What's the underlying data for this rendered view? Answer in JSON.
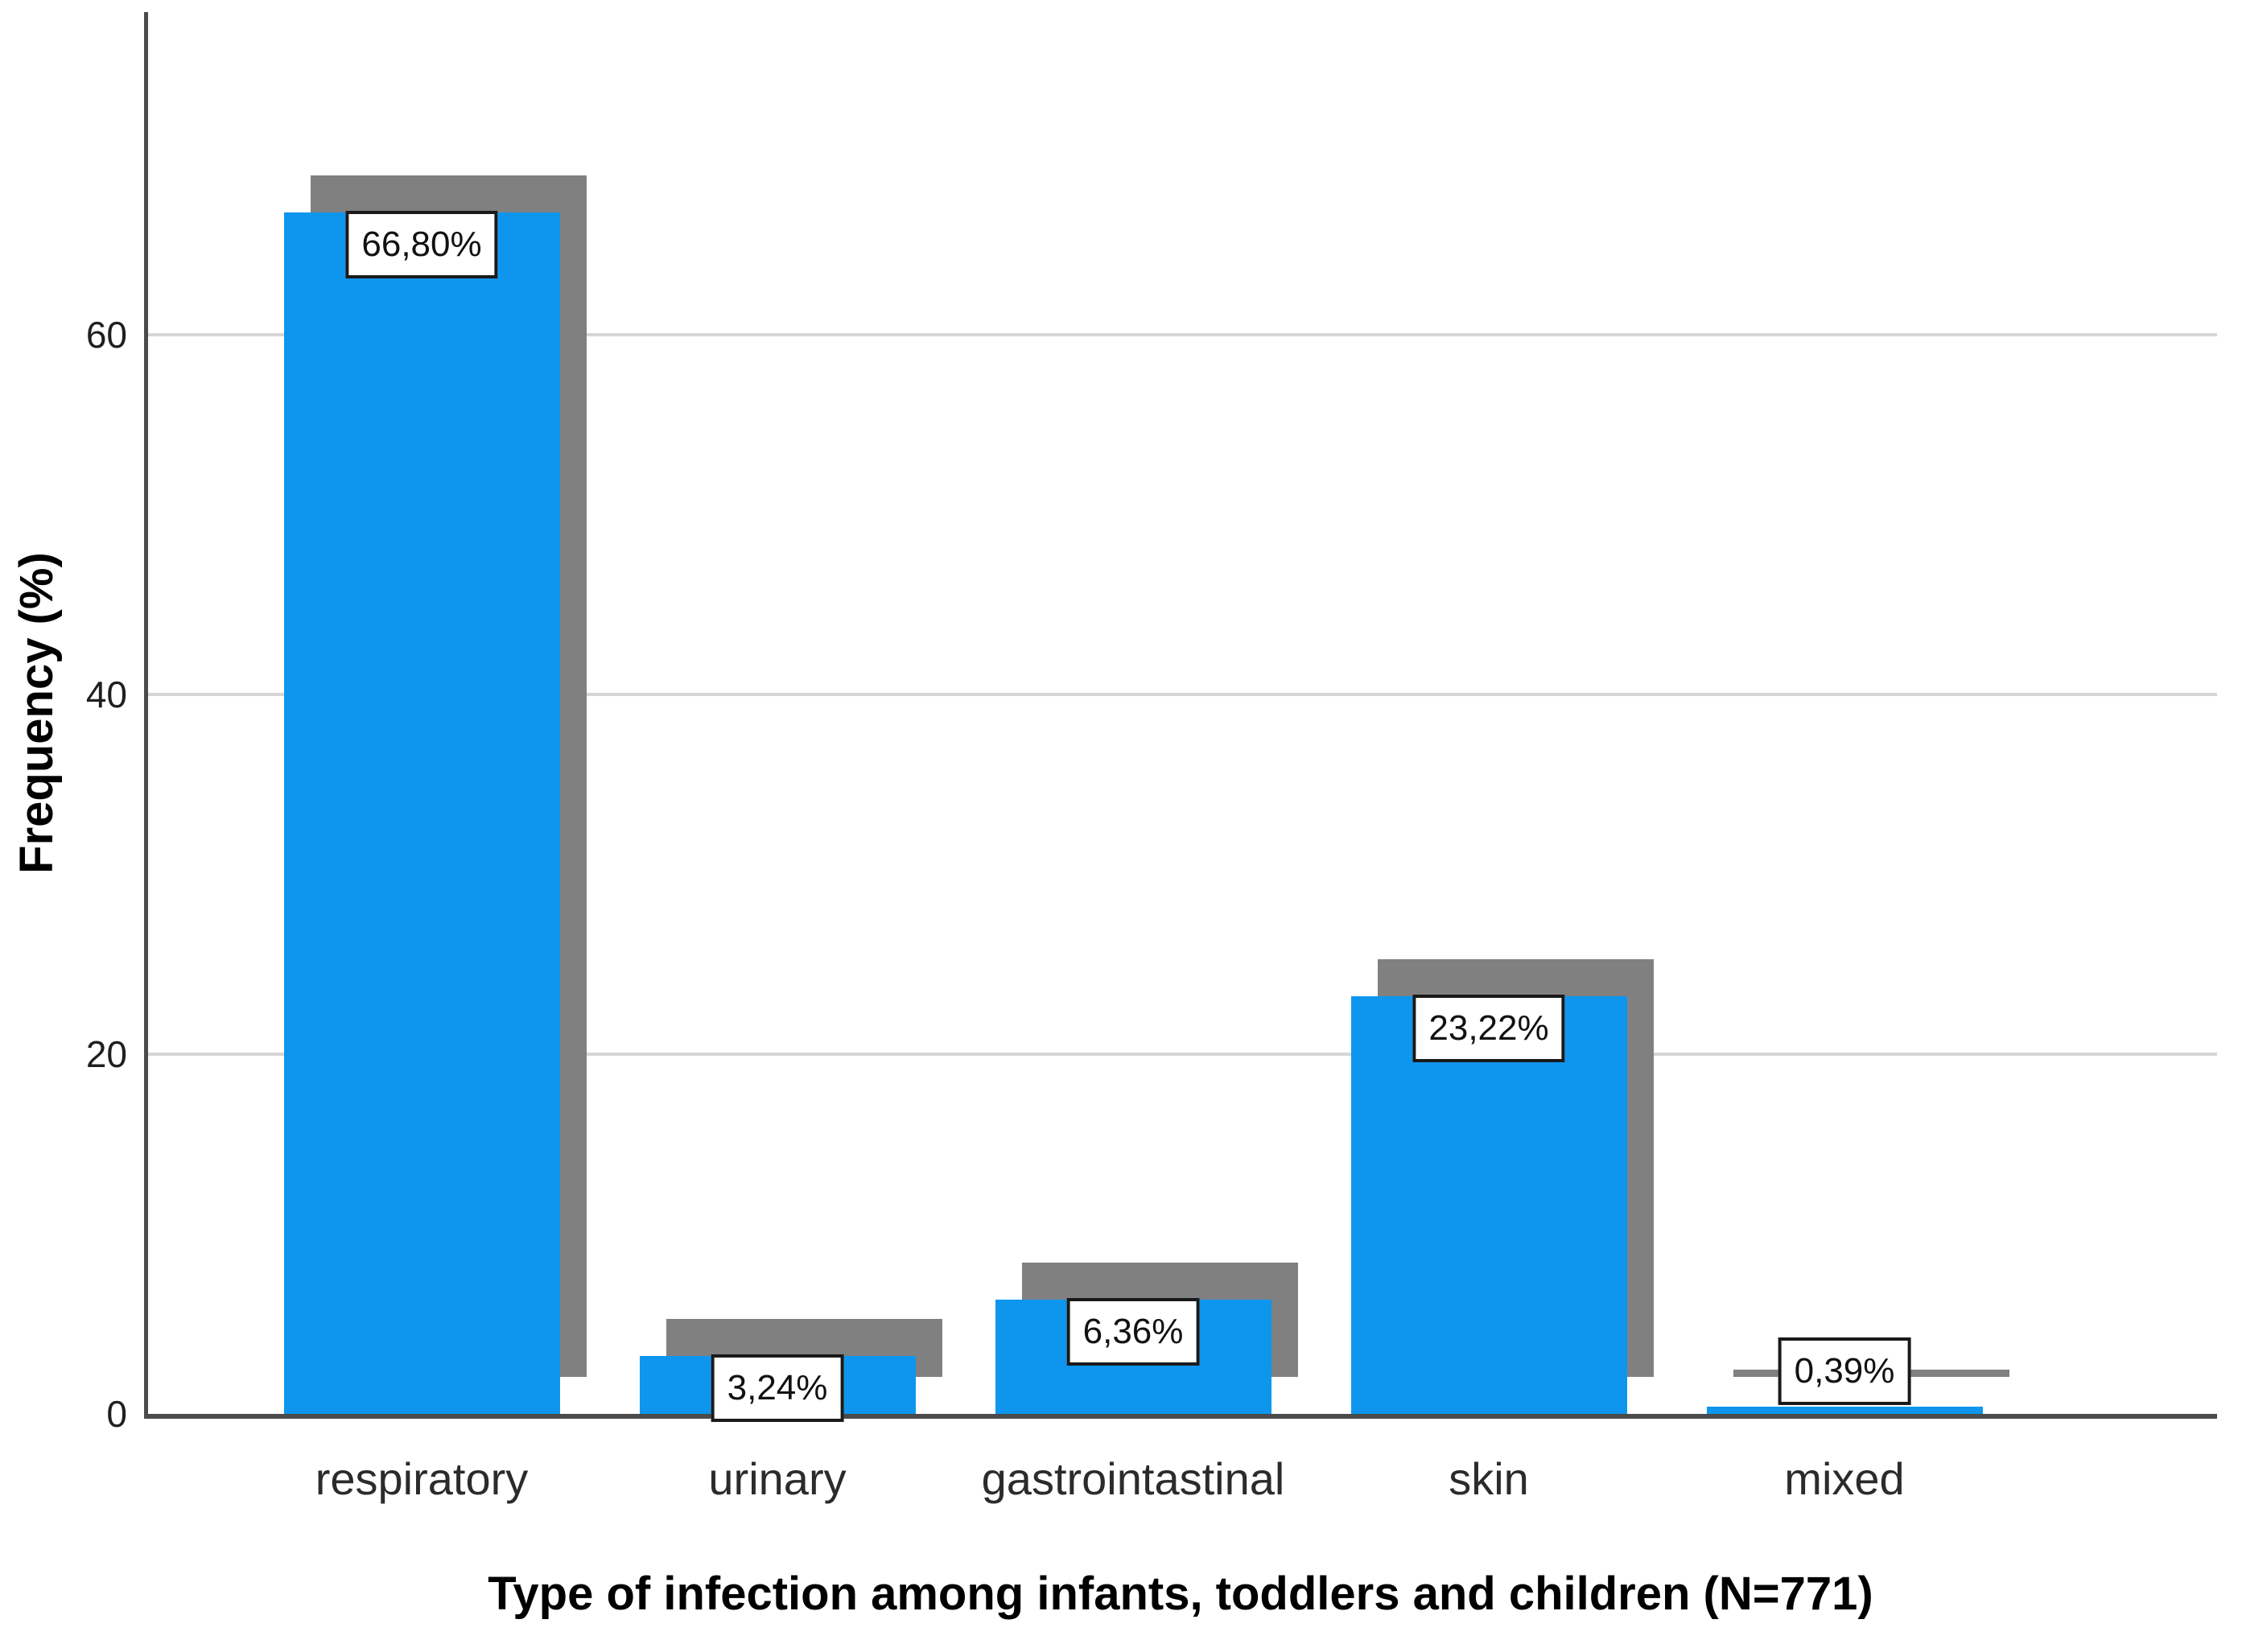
{
  "chart_data": {
    "type": "bar",
    "title": "",
    "xlabel": "Type of infection among infants, toddlers and children (N=771)",
    "ylabel": "Frequency (%)",
    "categories": [
      "respiratory",
      "urinary",
      "gastrointastinal",
      "skin",
      "mixed"
    ],
    "values": [
      66.8,
      3.24,
      6.36,
      23.22,
      0.39
    ],
    "value_labels": [
      "66,80%",
      "3,24%",
      "6,36%",
      "23,22%",
      "0,39%"
    ],
    "yticks": [
      0,
      20,
      40,
      60
    ],
    "ytick_labels": [
      "0",
      "20",
      "40",
      "60"
    ],
    "ylim": [
      0,
      78
    ],
    "grid": true,
    "legend": "none",
    "bar_style": "flat with offset drop shadow",
    "colors": {
      "bar": "#0e96ee",
      "bar_shadow": "#808080",
      "gridline": "#d6d6d6",
      "axis": "#4b4b4b",
      "value_box_bg": "#ffffff",
      "value_box_border": "#1a1a1a",
      "text": "#1f1f1f"
    }
  }
}
